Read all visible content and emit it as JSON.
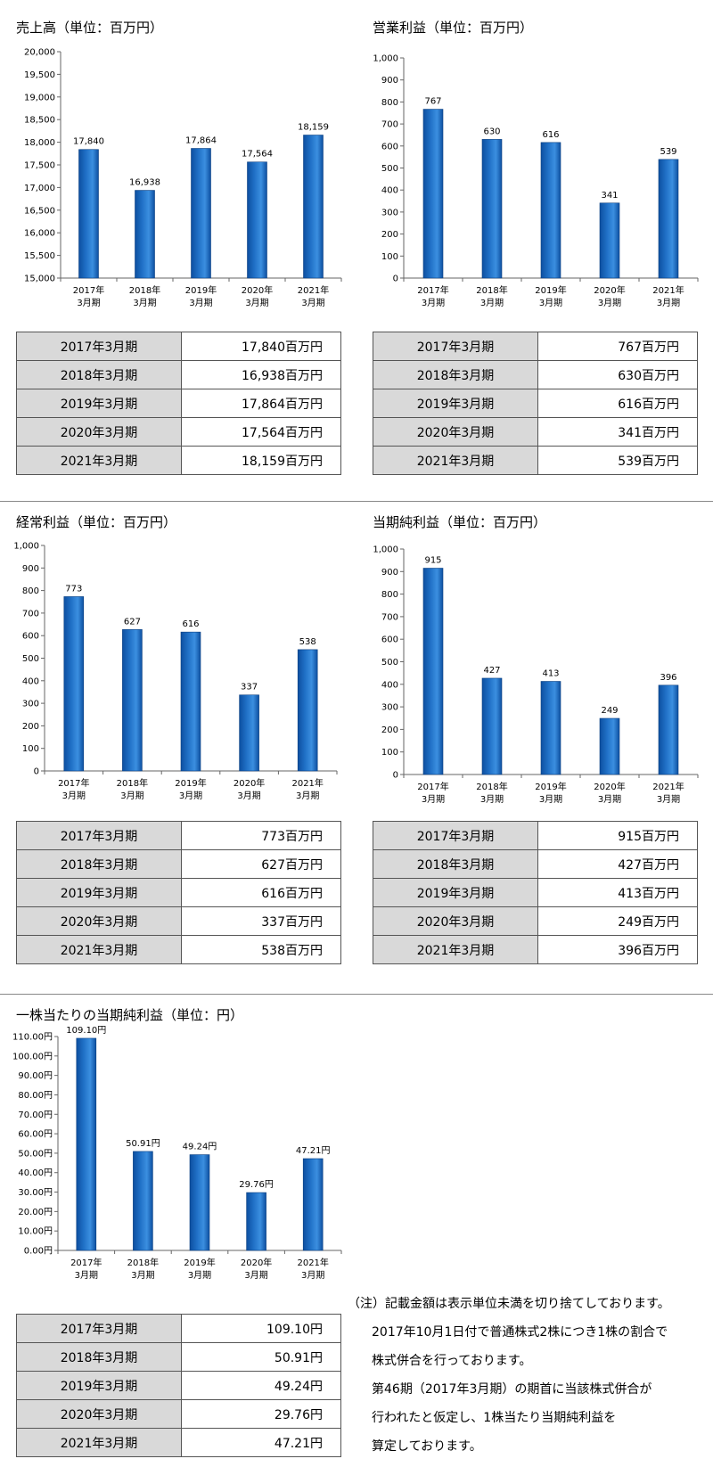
{
  "panels": [
    {
      "id": "sales",
      "title": "売上高（単位：百万円）",
      "table": [
        {
          "period": "2017年3月期",
          "value": "17,840百万円"
        },
        {
          "period": "2018年3月期",
          "value": "16,938百万円"
        },
        {
          "period": "2019年3月期",
          "value": "17,864百万円"
        },
        {
          "period": "2020年3月期",
          "value": "17,564百万円"
        },
        {
          "period": "2021年3月期",
          "value": "18,159百万円"
        }
      ]
    },
    {
      "id": "operating",
      "title": "営業利益（単位：百万円）",
      "table": [
        {
          "period": "2017年3月期",
          "value": "767百万円"
        },
        {
          "period": "2018年3月期",
          "value": "630百万円"
        },
        {
          "period": "2019年3月期",
          "value": "616百万円"
        },
        {
          "period": "2020年3月期",
          "value": "341百万円"
        },
        {
          "period": "2021年3月期",
          "value": "539百万円"
        }
      ]
    },
    {
      "id": "ordinary",
      "title": "経常利益（単位：百万円）",
      "table": [
        {
          "period": "2017年3月期",
          "value": "773百万円"
        },
        {
          "period": "2018年3月期",
          "value": "627百万円"
        },
        {
          "period": "2019年3月期",
          "value": "616百万円"
        },
        {
          "period": "2020年3月期",
          "value": "337百万円"
        },
        {
          "period": "2021年3月期",
          "value": "538百万円"
        }
      ]
    },
    {
      "id": "netincome",
      "title": "当期純利益（単位：百万円）",
      "table": [
        {
          "period": "2017年3月期",
          "value": "915百万円"
        },
        {
          "period": "2018年3月期",
          "value": "427百万円"
        },
        {
          "period": "2019年3月期",
          "value": "413百万円"
        },
        {
          "period": "2020年3月期",
          "value": "249百万円"
        },
        {
          "period": "2021年3月期",
          "value": "396百万円"
        }
      ]
    },
    {
      "id": "eps",
      "title": "一株当たりの当期純利益（単位：円）",
      "table": [
        {
          "period": "2017年3月期",
          "value": "109.10円"
        },
        {
          "period": "2018年3月期",
          "value": "50.91円"
        },
        {
          "period": "2019年3月期",
          "value": "49.24円"
        },
        {
          "period": "2020年3月期",
          "value": "29.76円"
        },
        {
          "period": "2021年3月期",
          "value": "47.21円"
        }
      ]
    }
  ],
  "note": {
    "lines": [
      "（注）記載金額は表示単位未満を切り捨てしております。",
      "2017年10月1日付で普通株式2株につき1株の割合で",
      "株式併合を行っております。",
      "第46期（2017年3月期）の期首に当該株式併合が",
      "行われたと仮定し、1株当たり当期純利益を",
      "算定しております。"
    ]
  },
  "chart_data": [
    {
      "type": "bar",
      "categories": [
        [
          "2017年",
          "3月期"
        ],
        [
          "2018年",
          "3月期"
        ],
        [
          "2019年",
          "3月期"
        ],
        [
          "2020年",
          "3月期"
        ],
        [
          "2021年",
          "3月期"
        ]
      ],
      "values": [
        17840,
        16938,
        17864,
        17564,
        18159
      ],
      "value_labels": [
        "17,840",
        "16,938",
        "17,864",
        "17,564",
        "18,159"
      ],
      "ylim": [
        15000,
        20000
      ],
      "yticks": [
        "15,000",
        "15,500",
        "16,000",
        "16,500",
        "17,000",
        "17,500",
        "18,000",
        "18,500",
        "19,000",
        "19,500",
        "20,000"
      ],
      "bar_color": "#1f6fc5"
    },
    {
      "type": "bar",
      "categories": [
        [
          "2017年",
          "3月期"
        ],
        [
          "2018年",
          "3月期"
        ],
        [
          "2019年",
          "3月期"
        ],
        [
          "2020年",
          "3月期"
        ],
        [
          "2021年",
          "3月期"
        ]
      ],
      "values": [
        767,
        630,
        616,
        341,
        539
      ],
      "value_labels": [
        "767",
        "630",
        "616",
        "341",
        "539"
      ],
      "ylim": [
        0,
        1000
      ],
      "yticks": [
        "0",
        "100",
        "200",
        "300",
        "400",
        "500",
        "600",
        "700",
        "800",
        "900",
        "1,000"
      ],
      "bar_color": "#1f6fc5"
    },
    {
      "type": "bar",
      "categories": [
        [
          "2017年",
          "3月期"
        ],
        [
          "2018年",
          "3月期"
        ],
        [
          "2019年",
          "3月期"
        ],
        [
          "2020年",
          "3月期"
        ],
        [
          "2021年",
          "3月期"
        ]
      ],
      "values": [
        773,
        627,
        616,
        337,
        538
      ],
      "value_labels": [
        "773",
        "627",
        "616",
        "337",
        "538"
      ],
      "ylim": [
        0,
        1000
      ],
      "yticks": [
        "0",
        "100",
        "200",
        "300",
        "400",
        "500",
        "600",
        "700",
        "800",
        "900",
        "1,000"
      ],
      "bar_color": "#1f6fc5"
    },
    {
      "type": "bar",
      "categories": [
        [
          "2017年",
          "3月期"
        ],
        [
          "2018年",
          "3月期"
        ],
        [
          "2019年",
          "3月期"
        ],
        [
          "2020年",
          "3月期"
        ],
        [
          "2021年",
          "3月期"
        ]
      ],
      "values": [
        915,
        427,
        413,
        249,
        396
      ],
      "value_labels": [
        "915",
        "427",
        "413",
        "249",
        "396"
      ],
      "ylim": [
        0,
        1000
      ],
      "yticks": [
        "0",
        "100",
        "200",
        "300",
        "400",
        "500",
        "600",
        "700",
        "800",
        "900",
        "1,000"
      ],
      "bar_color": "#1f6fc5"
    },
    {
      "type": "bar",
      "categories": [
        [
          "2017年",
          "3月期"
        ],
        [
          "2018年",
          "3月期"
        ],
        [
          "2019年",
          "3月期"
        ],
        [
          "2020年",
          "3月期"
        ],
        [
          "2021年",
          "3月期"
        ]
      ],
      "values": [
        109.1,
        50.91,
        49.24,
        29.76,
        47.21
      ],
      "value_labels": [
        "109.10円",
        "50.91円",
        "49.24円",
        "29.76円",
        "47.21円"
      ],
      "ylim": [
        0,
        110
      ],
      "yticks": [
        "0.00円",
        "10.00円",
        "20.00円",
        "30.00円",
        "40.00円",
        "50.00円",
        "60.00円",
        "70.00円",
        "80.00円",
        "90.00円",
        "100.00円",
        "110.00円"
      ],
      "bar_color": "#1f6fc5"
    }
  ]
}
